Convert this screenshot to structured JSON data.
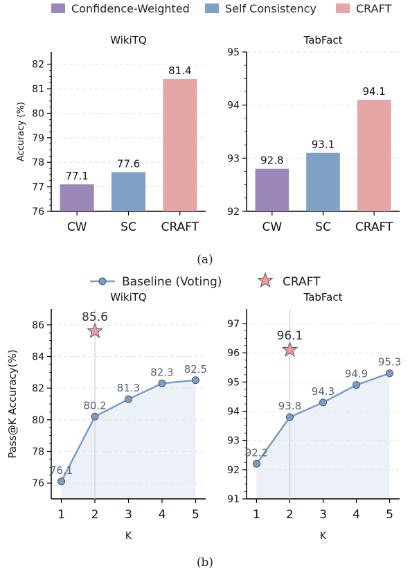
{
  "colors": {
    "cw": "#9C88B8",
    "sc": "#7FA1C6",
    "craft": "#E5A6A5",
    "baseline_line": "#7A9CC6",
    "baseline_marker": "#7A9CC6",
    "fill": "#E7EDF6",
    "star": "#EE9BA3",
    "value_text": "#5A6270",
    "grid": "#E3E3E3",
    "axis": "#000000"
  },
  "legend_a": {
    "items": [
      {
        "label": "Confidence-Weighted",
        "color": "#9C88B8"
      },
      {
        "label": "Self Consistency",
        "color": "#7FA1C6"
      },
      {
        "label": "CRAFT",
        "color": "#E5A6A5"
      }
    ]
  },
  "legend_b": {
    "baseline_label": "Baseline (Voting)",
    "craft_label": "CRAFT"
  },
  "captions": {
    "a": "(a)",
    "b": "(b)"
  },
  "chart_data": [
    {
      "type": "bar",
      "title": "WikiTQ",
      "categories": [
        "CW",
        "SC",
        "CRAFT"
      ],
      "values": [
        77.1,
        77.6,
        81.4
      ],
      "value_labels": [
        "77.1",
        "77.6",
        "81.4"
      ],
      "ylabel": "Accuracy (%)",
      "xlabel": "",
      "ylim": [
        76,
        82.5
      ],
      "yticks": [
        76,
        77,
        78,
        79,
        80,
        81,
        82
      ],
      "ytick_labels": [
        "76",
        "77",
        "78",
        "79",
        "80",
        "81",
        "82"
      ],
      "grid": true
    },
    {
      "type": "bar",
      "title": "TabFact",
      "categories": [
        "CW",
        "SC",
        "CRAFT"
      ],
      "values": [
        92.8,
        93.1,
        94.1
      ],
      "value_labels": [
        "92.8",
        "93.1",
        "94.1"
      ],
      "ylabel": "",
      "xlabel": "",
      "ylim": [
        92,
        95
      ],
      "yticks": [
        92,
        93,
        94,
        95
      ],
      "ytick_labels": [
        "92",
        "93",
        "94",
        "95"
      ],
      "grid": true
    },
    {
      "type": "line",
      "title": "WikiTQ",
      "x": [
        1,
        2,
        3,
        4,
        5
      ],
      "xtick_labels": [
        "1",
        "2",
        "3",
        "4",
        "5"
      ],
      "series": [
        {
          "name": "Baseline (Voting)",
          "values": [
            76.1,
            80.2,
            81.3,
            82.3,
            82.5
          ],
          "value_labels": [
            "76.1",
            "80.2",
            "81.3",
            "82.3",
            "82.5"
          ]
        }
      ],
      "craft_point": {
        "x": 2,
        "y": 85.6,
        "label": "85.6"
      },
      "xlabel": "K",
      "ylabel": "Pass@K Accuracy(%)",
      "xlim": [
        0.7,
        5.3
      ],
      "ylim": [
        75,
        87
      ],
      "yticks": [
        76,
        78,
        80,
        82,
        84,
        86
      ],
      "ytick_labels": [
        "76",
        "78",
        "80",
        "82",
        "84",
        "86"
      ],
      "grid": true
    },
    {
      "type": "line",
      "title": "TabFact",
      "x": [
        1,
        2,
        3,
        4,
        5
      ],
      "xtick_labels": [
        "1",
        "2",
        "3",
        "4",
        "5"
      ],
      "series": [
        {
          "name": "Baseline (Voting)",
          "values": [
            92.2,
            93.8,
            94.3,
            94.9,
            95.3
          ],
          "value_labels": [
            "92.2",
            "93.8",
            "94.3",
            "94.9",
            "95.3"
          ]
        }
      ],
      "craft_point": {
        "x": 2,
        "y": 96.1,
        "label": "96.1"
      },
      "xlabel": "K",
      "ylabel": "",
      "xlim": [
        0.7,
        5.3
      ],
      "ylim": [
        91,
        97.5
      ],
      "yticks": [
        91,
        92,
        93,
        94,
        95,
        96,
        97
      ],
      "ytick_labels": [
        "91",
        "92",
        "93",
        "94",
        "95",
        "96",
        "97"
      ],
      "grid": true
    }
  ]
}
